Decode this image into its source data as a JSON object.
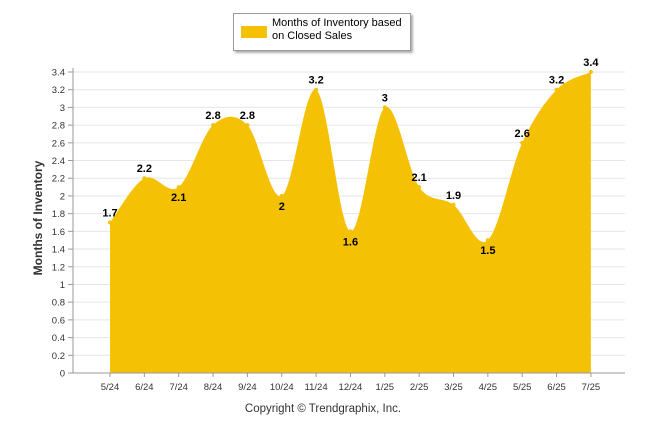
{
  "chart_data": {
    "type": "area",
    "categories": [
      "5/24",
      "6/24",
      "7/24",
      "8/24",
      "9/24",
      "10/24",
      "11/24",
      "12/24",
      "1/25",
      "2/25",
      "3/25",
      "4/25",
      "5/25",
      "6/25",
      "7/25"
    ],
    "series": [
      {
        "name": "Months of Inventory based on Closed Sales",
        "values": [
          1.7,
          2.2,
          2.1,
          2.8,
          2.8,
          2.0,
          3.2,
          1.6,
          3.0,
          2.1,
          1.9,
          1.5,
          2.6,
          3.2,
          3.4
        ],
        "labels": [
          "1.7",
          "2.2",
          "2.1",
          "2.8",
          "2.8",
          "2",
          "3.2",
          "1.6",
          "3",
          "2.1",
          "1.9",
          "1.5",
          "2.6",
          "3.2",
          "3.4"
        ],
        "color": "#F5C104"
      }
    ],
    "ylabel": "Months of Inventory",
    "ylim": [
      0,
      3.4
    ],
    "yticks": [
      "0",
      "0.2",
      "0.4",
      "0.6",
      "0.8",
      "1",
      "1.2",
      "1.4",
      "1.6",
      "1.8",
      "2",
      "2.2",
      "2.4",
      "2.6",
      "2.8",
      "3",
      "3.2",
      "3.4"
    ],
    "grid": true,
    "legend_position": "top-center"
  },
  "legend": {
    "label": "Months of Inventory based on Closed Sales"
  },
  "footer": {
    "copyright": "Copyright © Trendgraphix, Inc."
  }
}
